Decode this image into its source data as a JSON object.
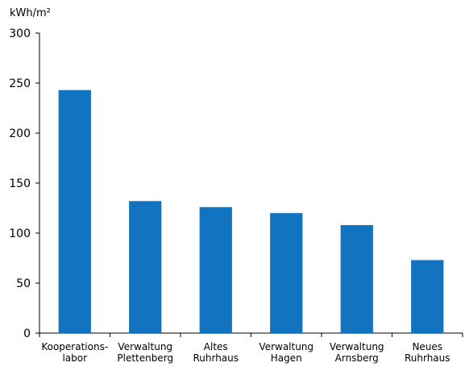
{
  "chart_data": {
    "type": "bar",
    "ylabel": "kWh/m²",
    "ylim": [
      0,
      300
    ],
    "yticks": [
      0,
      50,
      100,
      150,
      200,
      250,
      300
    ],
    "categories": [
      [
        "Kooperations-",
        "labor"
      ],
      [
        "Verwaltung",
        "Plettenberg"
      ],
      [
        "Altes",
        "Ruhrhaus"
      ],
      [
        "Verwaltung",
        "Hagen"
      ],
      [
        "Verwaltung",
        "Arnsberg"
      ],
      [
        "Neues",
        "Ruhrhaus"
      ]
    ],
    "values": [
      243,
      132,
      126,
      120,
      108,
      73
    ],
    "bar_color": "#1273c1",
    "grid": false
  }
}
